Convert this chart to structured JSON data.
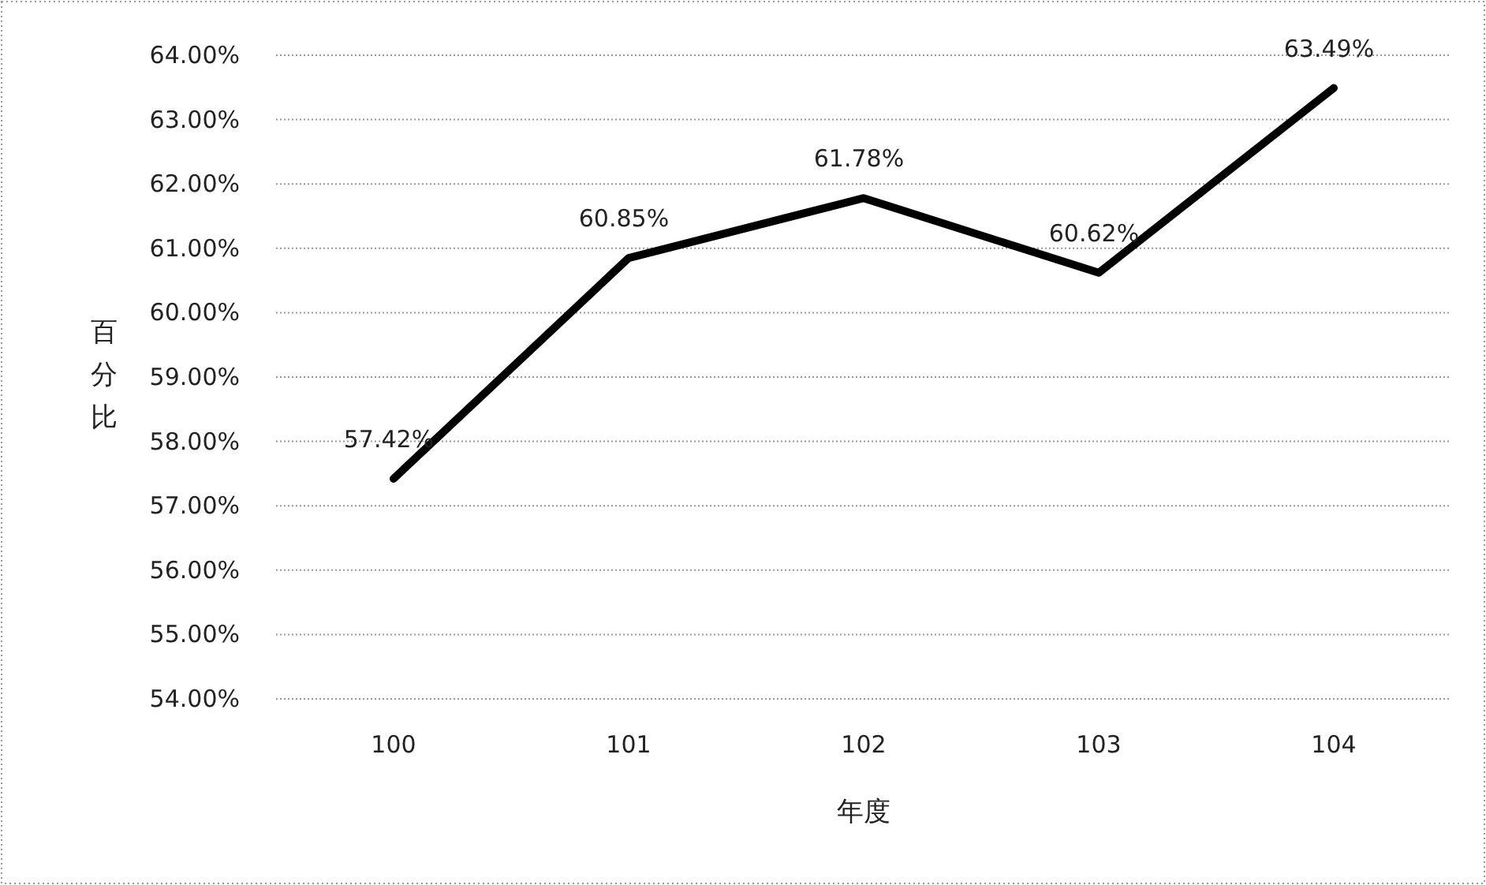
{
  "chart_data": {
    "type": "line",
    "xlabel": "年度",
    "ylabel": "百分比",
    "categories": [
      "100",
      "101",
      "102",
      "103",
      "104"
    ],
    "values": [
      57.42,
      60.85,
      61.78,
      60.62,
      63.49
    ],
    "value_labels": [
      "57.42%",
      "60.85%",
      "61.78%",
      "60.62%",
      "63.49%"
    ],
    "color": "#000000",
    "ylim": [
      54,
      64
    ],
    "yticks": [
      {
        "value": 54,
        "label": "54.00%"
      },
      {
        "value": 55,
        "label": "55.00%"
      },
      {
        "value": 56,
        "label": "56.00%"
      },
      {
        "value": 57,
        "label": "57.00%"
      },
      {
        "value": 58,
        "label": "58.00%"
      },
      {
        "value": 59,
        "label": "59.00%"
      },
      {
        "value": 60,
        "label": "60.00%"
      },
      {
        "value": 61,
        "label": "61.00%"
      },
      {
        "value": 62,
        "label": "62.00%"
      },
      {
        "value": 63,
        "label": "63.00%"
      },
      {
        "value": 64,
        "label": "64.00%"
      }
    ],
    "grid": "y"
  }
}
